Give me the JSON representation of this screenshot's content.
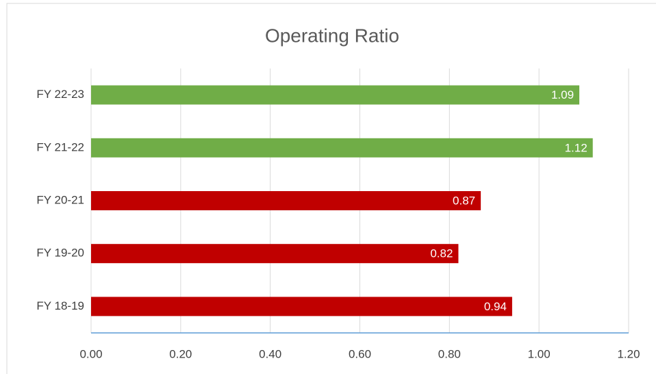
{
  "chart_data": {
    "type": "hbar",
    "title": "Operating Ratio",
    "categories": [
      "FY 18-19",
      "FY 19-20",
      "FY 20-21",
      "FY 21-22",
      "FY 22-23"
    ],
    "values": [
      0.94,
      0.82,
      0.87,
      1.12,
      1.09
    ],
    "colors": [
      "#c00000",
      "#c00000",
      "#c00000",
      "#70ad47",
      "#70ad47"
    ],
    "xlim": [
      0,
      1.2
    ],
    "xticks": [
      {
        "value": 0,
        "label": "0.00"
      },
      {
        "value": 0.2,
        "label": "0.20"
      },
      {
        "value": 0.4,
        "label": "0.40"
      },
      {
        "value": 0.6,
        "label": "0.60"
      },
      {
        "value": 0.8,
        "label": "0.80"
      },
      {
        "value": 1,
        "label": "1.00"
      },
      {
        "value": 1.2,
        "label": "1.20"
      }
    ],
    "grid": true
  }
}
